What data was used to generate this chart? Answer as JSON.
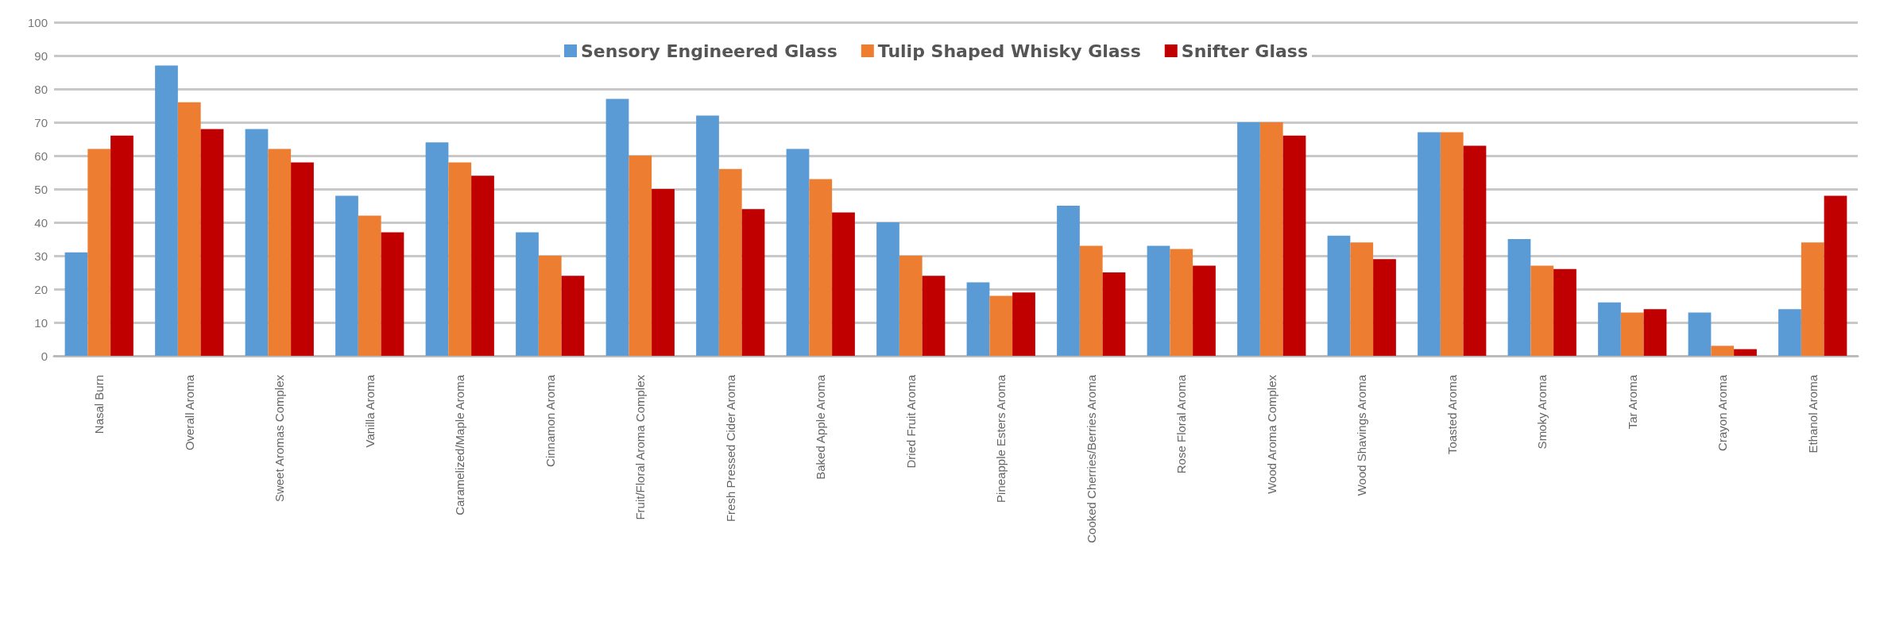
{
  "chart_data": {
    "type": "bar",
    "categories": [
      "Nasal Burn",
      "Overall Aroma",
      "Sweet Aromas Complex",
      "Vanilla Aroma",
      "Caramelized/Maple Aroma",
      "Cinnamon Aroma",
      "Fruit/Floral Aroma Complex",
      "Fresh Pressed Cider Aroma",
      "Baked Apple Aroma",
      "Dried Fruit Aroma",
      "Pineapple Esters Aroma",
      "Cooked Cherries/Berries Aroma",
      "Rose Floral Aroma",
      "Wood Aroma Complex",
      "Wood Shavings Aroma",
      "Toasted Aroma",
      "Smoky Aroma",
      "Tar Aroma",
      "Crayon Aroma",
      "Ethanol Aroma"
    ],
    "series": [
      {
        "name": "Sensory Engineered Glass",
        "color": "#5b9bd5",
        "values": [
          31,
          87,
          68,
          48,
          64,
          37,
          77,
          72,
          62,
          40,
          22,
          45,
          33,
          70,
          36,
          67,
          35,
          16,
          13,
          14
        ]
      },
      {
        "name": "Tulip Shaped Whisky Glass",
        "color": "#ed7d31",
        "values": [
          62,
          76,
          62,
          42,
          58,
          30,
          60,
          56,
          53,
          30,
          18,
          33,
          32,
          70,
          34,
          67,
          27,
          13,
          3,
          34
        ]
      },
      {
        "name": "Snifter Glass",
        "color": "#c00000",
        "values": [
          66,
          68,
          58,
          37,
          54,
          24,
          50,
          44,
          43,
          24,
          19,
          25,
          27,
          66,
          29,
          63,
          26,
          14,
          2,
          48
        ]
      }
    ],
    "ylim": [
      0,
      100
    ],
    "yticks": [
      0,
      10,
      20,
      30,
      40,
      50,
      60,
      70,
      80,
      90,
      100
    ],
    "grid": "y",
    "legend": "top"
  }
}
